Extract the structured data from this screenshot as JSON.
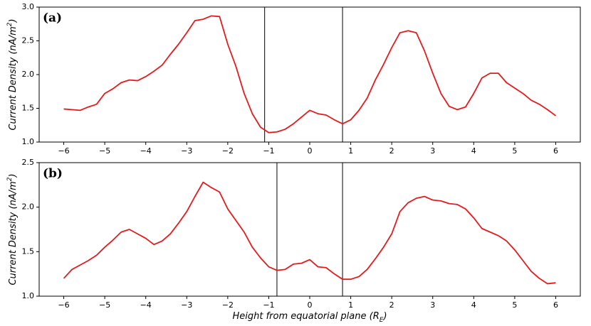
{
  "chart_data": [
    {
      "type": "line",
      "panel_label": "(a)",
      "ylabel": "Current Density (nA/m^2)",
      "x": [
        -6,
        -5.8,
        -5.6,
        -5.4,
        -5.2,
        -5,
        -4.8,
        -4.6,
        -4.4,
        -4.2,
        -4,
        -3.8,
        -3.6,
        -3.4,
        -3.2,
        -3,
        -2.8,
        -2.6,
        -2.4,
        -2.2,
        -2,
        -1.8,
        -1.6,
        -1.4,
        -1.2,
        -1,
        -0.8,
        -0.6,
        -0.4,
        -0.2,
        0,
        0.2,
        0.4,
        0.6,
        0.8,
        1,
        1.2,
        1.4,
        1.6,
        1.8,
        2,
        2.2,
        2.4,
        2.6,
        2.8,
        3,
        3.2,
        3.4,
        3.6,
        3.8,
        4,
        4.2,
        4.4,
        4.6,
        4.8,
        5,
        5.2,
        5.4,
        5.6,
        5.8,
        6
      ],
      "values": [
        1.49,
        1.48,
        1.47,
        1.52,
        1.56,
        1.72,
        1.79,
        1.88,
        1.92,
        1.91,
        1.97,
        2.05,
        2.14,
        2.3,
        2.45,
        2.62,
        2.8,
        2.82,
        2.87,
        2.86,
        2.45,
        2.12,
        1.72,
        1.42,
        1.22,
        1.14,
        1.15,
        1.19,
        1.27,
        1.37,
        1.47,
        1.42,
        1.4,
        1.33,
        1.27,
        1.33,
        1.47,
        1.65,
        1.92,
        2.15,
        2.4,
        2.62,
        2.65,
        2.62,
        2.35,
        2.02,
        1.72,
        1.53,
        1.48,
        1.52,
        1.72,
        1.95,
        2.02,
        2.02,
        1.88,
        1.8,
        1.72,
        1.62,
        1.56,
        1.48,
        1.39
      ],
      "color": "#e41a1c",
      "vlines": [
        -1.1,
        0.8
      ],
      "vline_color": "#000000",
      "xlim": [
        -6.6,
        6.6
      ],
      "ylim": [
        1,
        3
      ],
      "xticks": [
        {
          "value": -6,
          "label": "−6"
        },
        {
          "value": -5,
          "label": "−5"
        },
        {
          "value": -4,
          "label": "−4"
        },
        {
          "value": -3,
          "label": "−3"
        },
        {
          "value": -2,
          "label": "−2"
        },
        {
          "value": -1,
          "label": "−1"
        },
        0,
        1,
        2,
        3,
        4,
        5,
        6
      ],
      "yticks": [
        {
          "value": 1,
          "label": "1.0"
        },
        1.5,
        {
          "value": 2,
          "label": "2.0"
        },
        2.5,
        {
          "value": 3,
          "label": "3.0"
        }
      ]
    },
    {
      "type": "line",
      "panel_label": "(b)",
      "ylabel": "Current Density (nA/m^2)",
      "xlabel": "Height from equatorial plane (R_E)",
      "x": [
        -6,
        -5.8,
        -5.6,
        -5.4,
        -5.2,
        -5,
        -4.8,
        -4.6,
        -4.4,
        -4.2,
        -4,
        -3.8,
        -3.6,
        -3.4,
        -3.2,
        -3,
        -2.8,
        -2.6,
        -2.4,
        -2.2,
        -2,
        -1.8,
        -1.6,
        -1.4,
        -1.2,
        -1,
        -0.8,
        -0.6,
        -0.4,
        -0.2,
        0,
        0.2,
        0.4,
        0.6,
        0.8,
        1,
        1.2,
        1.4,
        1.6,
        1.8,
        2,
        2.2,
        2.4,
        2.6,
        2.8,
        3,
        3.2,
        3.4,
        3.6,
        3.8,
        4,
        4.2,
        4.4,
        4.6,
        4.8,
        5,
        5.2,
        5.4,
        5.6,
        5.8,
        6
      ],
      "values": [
        1.2,
        1.3,
        1.35,
        1.4,
        1.46,
        1.55,
        1.63,
        1.72,
        1.75,
        1.7,
        1.65,
        1.58,
        1.62,
        1.7,
        1.82,
        1.95,
        2.12,
        2.28,
        2.22,
        2.17,
        1.98,
        1.85,
        1.72,
        1.55,
        1.43,
        1.33,
        1.29,
        1.3,
        1.36,
        1.37,
        1.41,
        1.33,
        1.32,
        1.25,
        1.19,
        1.19,
        1.22,
        1.3,
        1.42,
        1.55,
        1.7,
        1.95,
        2.05,
        2.1,
        2.12,
        2.08,
        2.07,
        2.04,
        2.03,
        1.98,
        1.88,
        1.76,
        1.72,
        1.68,
        1.62,
        1.52,
        1.4,
        1.28,
        1.2,
        1.14,
        1.15
      ],
      "color": "#e41a1c",
      "vlines": [
        -0.8,
        0.8
      ],
      "vline_color": "#000000",
      "xlim": [
        -6.6,
        6.6
      ],
      "ylim": [
        1,
        2.5
      ],
      "xticks": [
        {
          "value": -6,
          "label": "−6"
        },
        {
          "value": -5,
          "label": "−5"
        },
        {
          "value": -4,
          "label": "−4"
        },
        {
          "value": -3,
          "label": "−3"
        },
        {
          "value": -2,
          "label": "−2"
        },
        {
          "value": -1,
          "label": "−1"
        },
        0,
        1,
        2,
        3,
        4,
        5,
        6
      ],
      "yticks": [
        {
          "value": 1,
          "label": "1.0"
        },
        1.5,
        {
          "value": 2,
          "label": "2.0"
        },
        2.5
      ]
    }
  ]
}
